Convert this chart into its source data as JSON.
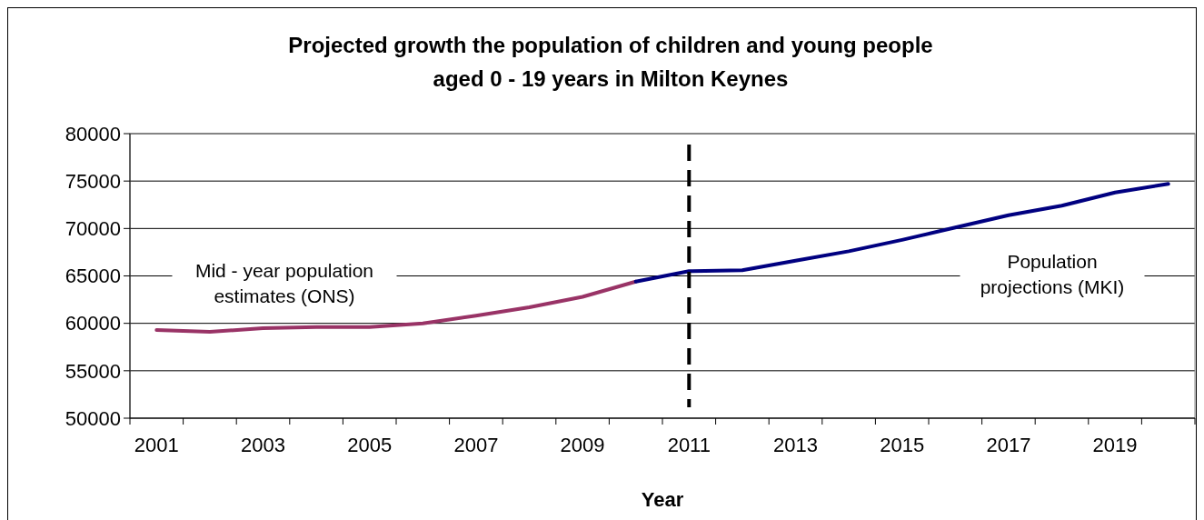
{
  "chart_data": {
    "type": "line",
    "title": "Projected growth the population of children and young people\naged 0 - 19 years in Milton Keynes",
    "xlabel": "Year",
    "categories": [
      "2001",
      null,
      "2003",
      null,
      "2005",
      null,
      "2007",
      null,
      "2009",
      null,
      "2011",
      null,
      "2013",
      null,
      "2015",
      null,
      "2017",
      null,
      "2019",
      null
    ],
    "series": [
      {
        "color": "#993366",
        "values": [
          59300,
          59100,
          59500,
          59600,
          59600,
          60000,
          60800,
          61700,
          62800,
          64400,
          null,
          null,
          null,
          null,
          null,
          null,
          null,
          null,
          null,
          null
        ]
      },
      {
        "color": "#000080",
        "values": [
          null,
          null,
          null,
          null,
          null,
          null,
          null,
          null,
          null,
          64400,
          65500,
          65600,
          66600,
          67600,
          68800,
          70100,
          71400,
          72400,
          73800,
          74700
        ]
      }
    ],
    "ylim": [
      50000,
      80000
    ],
    "yticks": [
      50000,
      55000,
      60000,
      65000,
      70000,
      75000,
      80000
    ],
    "grid": "y",
    "line_style": "solid",
    "marker": "none",
    "ref_lines": [
      {
        "axis": "x",
        "value": "2011",
        "color": "#000000",
        "line_style": "dashed"
      }
    ],
    "annotations": [
      "Mid - year population\nestimates (ONS)",
      "Population\nprojections (MKI)"
    ]
  }
}
